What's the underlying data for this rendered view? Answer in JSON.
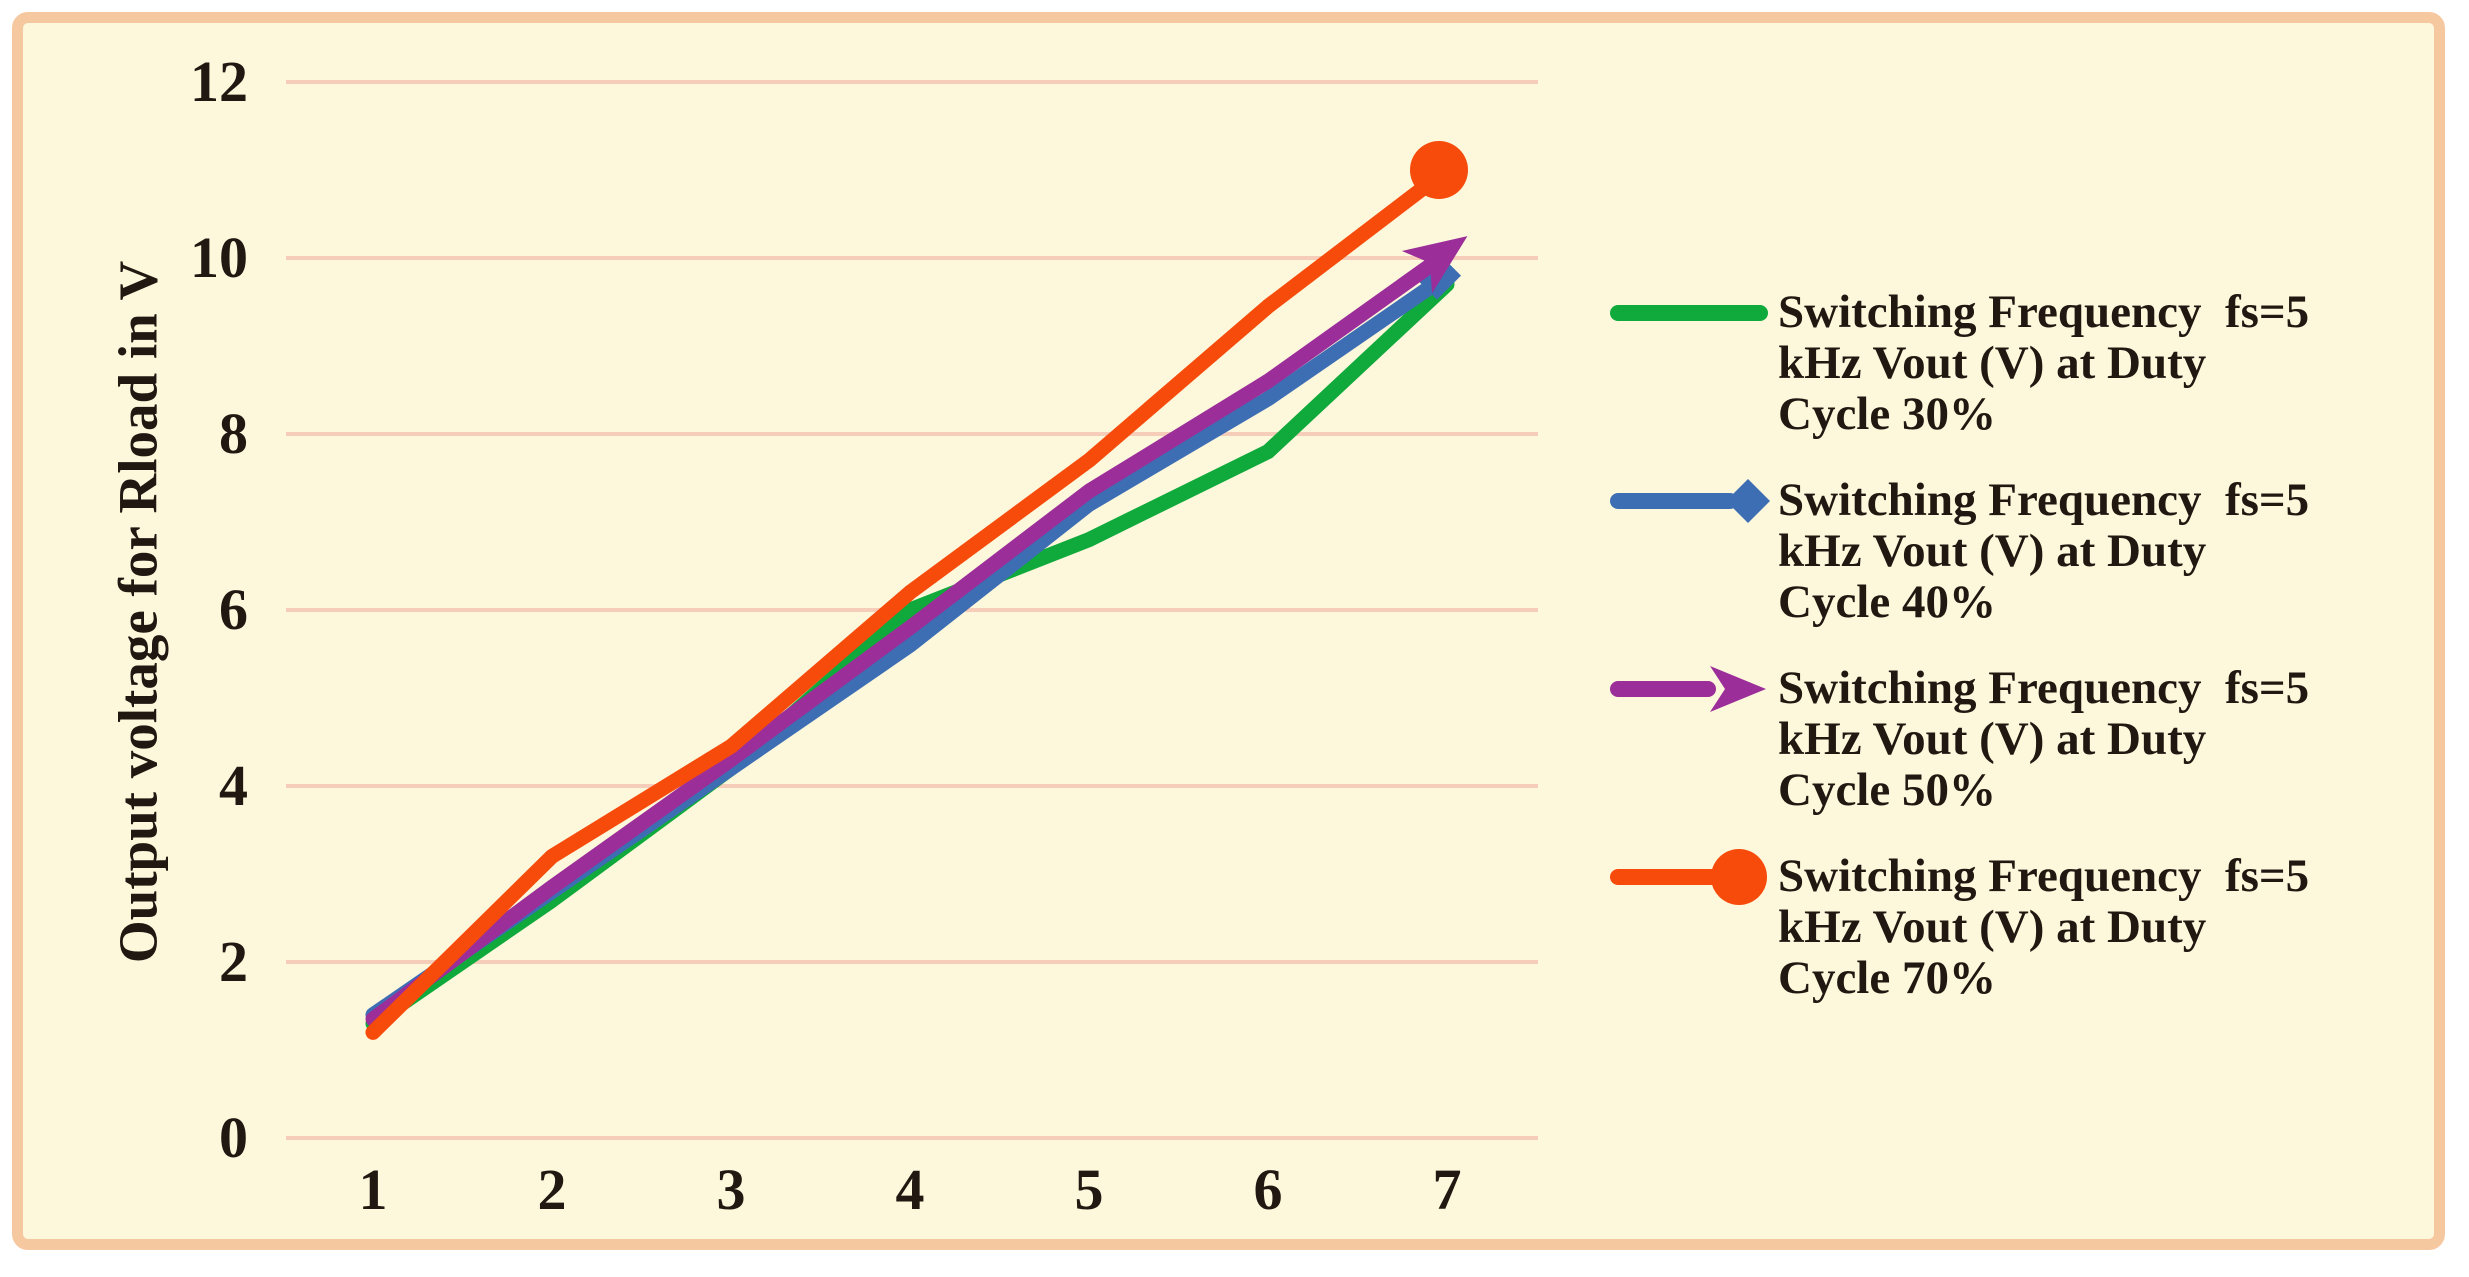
{
  "figure": {
    "background_color": "#FFFFFF",
    "panel_color": "#FDF8DC",
    "frame_color": "#F6C8A0",
    "text_color": "#211811"
  },
  "chart_data": {
    "type": "line",
    "title": "",
    "xlabel": "",
    "ylabel": "Output voltage for Rload in V",
    "x": [
      1,
      2,
      3,
      4,
      5,
      6,
      7
    ],
    "x_tick_labels": [
      "1",
      "2",
      "3",
      "4",
      "5",
      "6",
      "7"
    ],
    "y_ticks": [
      0,
      2,
      4,
      6,
      8,
      10,
      12
    ],
    "ylim": [
      0,
      12
    ],
    "grid": "horizontal major gridlines every 2 units",
    "gridline_color": "#F5CDB8",
    "legend_position": "right",
    "series": [
      {
        "id": "duty-30",
        "name": "Switching Frequency fs=5 kHz Vout (V) at Duty Cycle 30%",
        "legend_lines": [
          "Switching Frequency  fs=5",
          "kHz Vout (V) at Duty",
          "Cycle 30%"
        ],
        "color": "#0FA93C",
        "marker": "none",
        "values": [
          1.3,
          2.7,
          4.2,
          6.0,
          6.8,
          7.8,
          9.7
        ]
      },
      {
        "id": "duty-40",
        "name": "Switching Frequency fs=5 kHz Vout (V) at Duty Cycle 40%",
        "legend_lines": [
          "Switching Frequency  fs=5",
          "kHz Vout (V) at Duty",
          "Cycle 40%"
        ],
        "color": "#3D6EB4",
        "marker": "diamond",
        "values": [
          1.4,
          2.8,
          4.2,
          5.6,
          7.2,
          8.4,
          9.8
        ]
      },
      {
        "id": "duty-50",
        "name": "Switching Frequency fs=5 kHz Vout (V) at Duty Cycle 50%",
        "legend_lines": [
          "Switching Frequency  fs=5",
          "kHz Vout (V) at Duty",
          "Cycle 50%"
        ],
        "color": "#9B2E99",
        "marker": "arrow",
        "values": [
          1.35,
          2.85,
          4.3,
          5.8,
          7.35,
          8.6,
          10.05
        ]
      },
      {
        "id": "duty-70",
        "name": "Switching Frequency fs=5 kHz Vout (V) at Duty Cycle 70%",
        "legend_lines": [
          "Switching Frequency  fs=5",
          "kHz Vout (V) at Duty",
          "Cycle 70%"
        ],
        "color": "#F74B0B",
        "marker": "circle",
        "values": [
          1.2,
          3.2,
          4.45,
          6.2,
          7.7,
          9.45,
          11.0
        ]
      }
    ]
  }
}
